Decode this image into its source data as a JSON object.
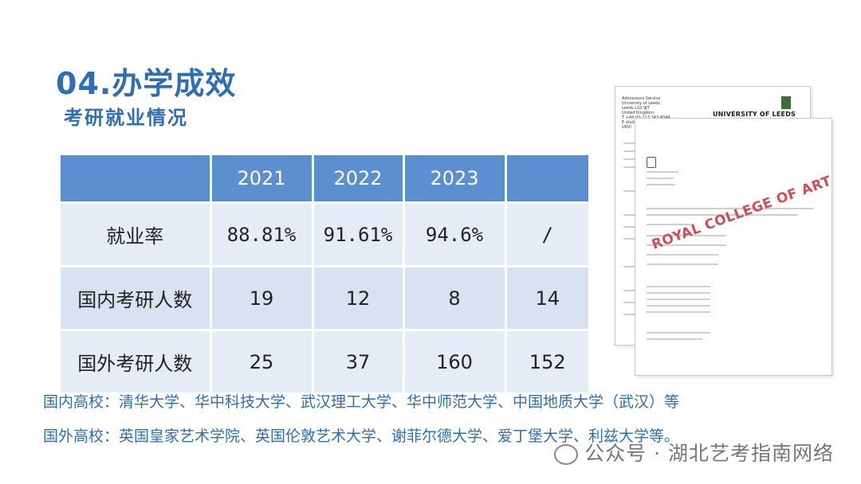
{
  "title": "04.办学成效",
  "subtitle": "考研就业情况",
  "table": {
    "headers": [
      "",
      "2021",
      "2022",
      "2023",
      ""
    ],
    "rows": [
      {
        "label": "就业率",
        "values": [
          "88.81%",
          "91.61%",
          "94.6%",
          "/"
        ]
      },
      {
        "label": "国内考研人数",
        "values": [
          "19",
          "12",
          "8",
          "14"
        ]
      },
      {
        "label": "国外考研人数",
        "values": [
          "25",
          "37",
          "160",
          "152"
        ]
      }
    ]
  },
  "notes": {
    "domestic": "国内高校：清华大学、华中科技大学、武汉理工大学、华中师范大学、中国地质大学（武汉）等",
    "foreign": "国外高校：英国皇家艺术学院、英国伦敦艺术大学、谢菲尔德大学、爱丁堡大学、利兹大学等。"
  },
  "letters": {
    "leeds_logo": "UNIVERSITY OF LEEDS",
    "leeds_header": "Admissions Service\nUniversity of Leeds\nLeeds LS2 9JT\nUnited Kingdom\nT +44 (0) 113 343 4044\nE stud\nUKVI",
    "rca_stamp": "ROYAL COLLEGE OF ART"
  },
  "watermark": "公众号 · 湖北艺考指南网络",
  "colors": {
    "title": "#2f6db5",
    "header_bg": "#5b8fd0",
    "row_light": "#e6ecf6",
    "row_dark": "#d8e2f1",
    "stamp": "#d24b59"
  }
}
